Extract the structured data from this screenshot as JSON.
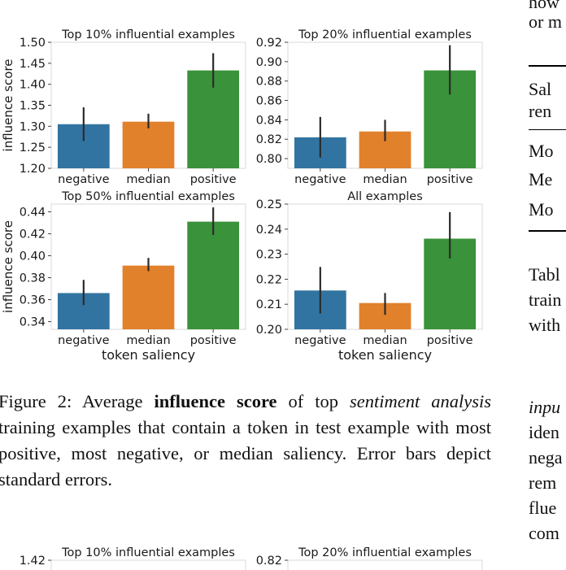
{
  "chart_data": [
    {
      "type": "bar",
      "title": "Top 10% influential examples",
      "categories": [
        "negative",
        "median",
        "positive"
      ],
      "values": [
        1.305,
        1.311,
        1.433
      ],
      "errors": [
        [
          1.265,
          1.345
        ],
        [
          1.295,
          1.33
        ],
        [
          1.392,
          1.474
        ]
      ],
      "ylim": [
        1.2,
        1.5
      ],
      "yticks": [
        "1.20",
        "1.25",
        "1.30",
        "1.35",
        "1.40",
        "1.45",
        "1.50"
      ],
      "ylabel": "influence score",
      "xlabel": ""
    },
    {
      "type": "bar",
      "title": "Top 20% influential examples",
      "categories": [
        "negative",
        "median",
        "positive"
      ],
      "values": [
        0.822,
        0.828,
        0.891
      ],
      "errors": [
        [
          0.801,
          0.843
        ],
        [
          0.818,
          0.84
        ],
        [
          0.866,
          0.917
        ]
      ],
      "ylim": [
        0.79,
        0.92
      ],
      "yticks": [
        "0.80",
        "0.82",
        "0.84",
        "0.86",
        "0.88",
        "0.90",
        "0.92"
      ],
      "ylabel": "",
      "xlabel": ""
    },
    {
      "type": "bar",
      "title": "Top 50% influential examples",
      "categories": [
        "negative",
        "median",
        "positive"
      ],
      "values": [
        0.366,
        0.391,
        0.431
      ],
      "errors": [
        [
          0.355,
          0.378
        ],
        [
          0.386,
          0.398
        ],
        [
          0.419,
          0.444
        ]
      ],
      "ylim": [
        0.333,
        0.447
      ],
      "yticks": [
        "0.34",
        "0.36",
        "0.38",
        "0.40",
        "0.42",
        "0.44"
      ],
      "ylabel": "influence score",
      "xlabel": "token saliency"
    },
    {
      "type": "bar",
      "title": "All examples",
      "categories": [
        "negative",
        "median",
        "positive"
      ],
      "values": [
        0.2155,
        0.2105,
        0.2362
      ],
      "errors": [
        [
          0.2063,
          0.2249
        ],
        [
          0.2058,
          0.2145
        ],
        [
          0.2283,
          0.2468
        ]
      ],
      "ylim": [
        0.2,
        0.25
      ],
      "yticks": [
        "0.20",
        "0.21",
        "0.22",
        "0.23",
        "0.24",
        "0.25"
      ],
      "ylabel": "",
      "xlabel": "token saliency"
    },
    {
      "type": "bar",
      "title": "Top 10% influential examples",
      "categories": [],
      "values": [],
      "ylim": [
        1.2,
        1.42
      ],
      "yticks": [
        "1.42"
      ],
      "ylabel": "",
      "xlabel": ""
    },
    {
      "type": "bar",
      "title": "Top 20% influential examples",
      "categories": [],
      "values": [],
      "ylim": [
        0.79,
        0.82
      ],
      "yticks": [
        "0.82"
      ],
      "ylabel": "",
      "xlabel": ""
    }
  ],
  "colors": {
    "negative": "#3274a1",
    "median": "#e1812c",
    "positive": "#3a923a",
    "errorbar": "#2b2b2b",
    "axis": "#d9d9d9"
  },
  "caption": {
    "label": "Figure 2:  Average ",
    "bold": "influence score",
    "mid1": " of top ",
    "italic1": "sentiment analysis",
    "rest": " training examples that contain a token in test example with most positive, most negative, or median saliency. Error bars depict standard errors."
  },
  "right_column": {
    "line1": "how",
    "line2": "or m",
    "table_header1": "Sal",
    "table_header2": "ren",
    "row1": "Mo",
    "row2": "Me",
    "row3": "Mo",
    "text1": "Tabl",
    "text2": "train",
    "text3": "with",
    "text4": "inpu",
    "text5": "iden",
    "text6": "nega",
    "text7": "rem",
    "text8": "flue",
    "text9": "com"
  }
}
